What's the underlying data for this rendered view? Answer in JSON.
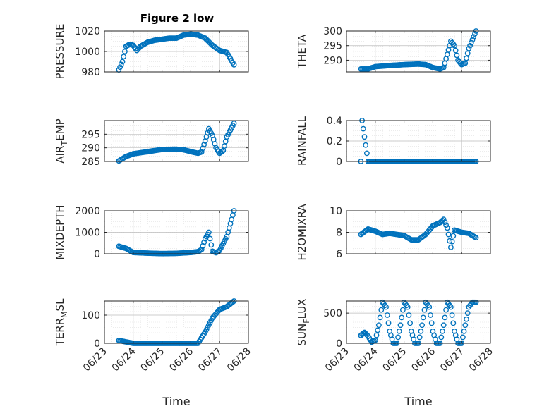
{
  "figure": {
    "title": "Figure 2 low",
    "marker_color": "#0072BD",
    "axes_color": "#262626",
    "grid_color": "#bdbdbd",
    "x_tick_labels": [
      "06/23",
      "06/24",
      "06/25",
      "06/26",
      "06/27",
      "06/28"
    ],
    "x_tick_values": [
      0,
      1,
      2,
      3,
      4,
      5
    ],
    "x_range_days": [
      0,
      5
    ],
    "x_date_origin": "06/23",
    "xlabel": "Time"
  },
  "chart_data": [
    {
      "type": "scatter",
      "title": "Figure 2 low",
      "ylabel": "PRESSURE",
      "ylim": [
        980,
        1020
      ],
      "yticks": [
        980,
        1000,
        1020
      ],
      "grid": true,
      "x": [
        "06/23 12:00",
        "06/23 15:00",
        "06/23 18:00",
        "06/23 21:00",
        "06/24 00:00",
        "06/24 03:00",
        "06/24 06:00",
        "06/24 09:00",
        "06/24 12:00",
        "06/24 18:00",
        "06/25 00:00",
        "06/25 06:00",
        "06/25 12:00",
        "06/25 18:00",
        "06/26 00:00",
        "06/26 06:00",
        "06/26 12:00",
        "06/26 18:00",
        "06/27 00:00",
        "06/27 06:00",
        "06/27 09:00",
        "06/27 12:00"
      ],
      "y": [
        982,
        990,
        1005,
        1007,
        1006,
        1001,
        1005,
        1007,
        1009,
        1011,
        1012,
        1013,
        1013,
        1016,
        1017,
        1016,
        1013,
        1006,
        1001,
        999,
        993,
        987
      ]
    },
    {
      "type": "scatter",
      "ylabel": "THETA",
      "ylim": [
        286,
        300
      ],
      "yticks": [
        290,
        295,
        300
      ],
      "grid": true,
      "x": [
        "06/23 12:00",
        "06/23 18:00",
        "06/24 00:00",
        "06/24 12:00",
        "06/25 00:00",
        "06/25 12:00",
        "06/25 18:00",
        "06/26 00:00",
        "06/26 06:00",
        "06/26 09:00",
        "06/26 12:00",
        "06/26 15:00",
        "06/26 18:00",
        "06/26 21:00",
        "06/27 00:00",
        "06/27 03:00",
        "06/27 06:00",
        "06/27 12:00"
      ],
      "y": [
        287,
        287,
        287.8,
        288.2,
        288.5,
        288.7,
        288.5,
        287.5,
        287,
        287.5,
        292,
        296.5,
        295,
        290,
        288.5,
        289,
        294,
        300
      ]
    },
    {
      "type": "scatter",
      "ylabel": "AIR_TEMP",
      "ylim": [
        285,
        300
      ],
      "yticks": [
        285,
        290,
        295
      ],
      "grid": true,
      "x": [
        "06/23 12:00",
        "06/23 18:00",
        "06/24 00:00",
        "06/24 12:00",
        "06/25 00:00",
        "06/25 12:00",
        "06/25 18:00",
        "06/26 00:00",
        "06/26 06:00",
        "06/26 09:00",
        "06/26 12:00",
        "06/26 15:00",
        "06/26 18:00",
        "06/26 21:00",
        "06/27 00:00",
        "06/27 03:00",
        "06/27 06:00",
        "06/27 12:00"
      ],
      "y": [
        285.2,
        286.8,
        287.8,
        288.6,
        289.4,
        289.5,
        289.3,
        288.6,
        288,
        288.5,
        292.5,
        297,
        294.5,
        290,
        288,
        289,
        294,
        299
      ]
    },
    {
      "type": "scatter",
      "ylabel": "RAINFALL",
      "ylim": [
        0,
        0.4
      ],
      "yticks": [
        0,
        0.2,
        0.4
      ],
      "grid": true,
      "x": [
        "06/23 12:00",
        "06/23 13:00",
        "06/23 18:00",
        "06/24 12:00",
        "06/25 12:00",
        "06/26 12:00",
        "06/27 12:00"
      ],
      "y": [
        0,
        0.4,
        0,
        0,
        0,
        0,
        0
      ]
    },
    {
      "type": "scatter",
      "ylabel": "MIXDEPTH",
      "ylim": [
        0,
        2000
      ],
      "yticks": [
        0,
        1000,
        2000
      ],
      "grid": true,
      "x": [
        "06/23 12:00",
        "06/23 18:00",
        "06/24 00:00",
        "06/24 12:00",
        "06/25 00:00",
        "06/25 12:00",
        "06/26 00:00",
        "06/26 06:00",
        "06/26 09:00",
        "06/26 12:00",
        "06/26 15:00",
        "06/26 18:00",
        "06/26 21:00",
        "06/27 00:00",
        "06/27 06:00",
        "06/27 12:00"
      ],
      "y": [
        350,
        250,
        60,
        30,
        10,
        20,
        60,
        100,
        200,
        700,
        1000,
        120,
        50,
        150,
        800,
        2000
      ]
    },
    {
      "type": "scatter",
      "ylabel": "H2OMIXRA",
      "ylim": [
        6,
        10
      ],
      "yticks": [
        6,
        8,
        10
      ],
      "grid": true,
      "x": [
        "06/23 12:00",
        "06/23 18:00",
        "06/24 00:00",
        "06/24 06:00",
        "06/24 12:00",
        "06/25 00:00",
        "06/25 06:00",
        "06/25 12:00",
        "06/25 18:00",
        "06/26 00:00",
        "06/26 06:00",
        "06/26 09:00",
        "06/26 12:00",
        "06/26 15:00",
        "06/26 18:00",
        "06/27 00:00",
        "06/27 06:00",
        "06/27 12:00"
      ],
      "y": [
        7.8,
        8.3,
        8.1,
        7.8,
        7.9,
        7.7,
        7.3,
        7.3,
        7.8,
        8.6,
        8.9,
        9.2,
        8.4,
        6.6,
        8.2,
        8.0,
        7.9,
        7.5
      ]
    },
    {
      "type": "scatter",
      "ylabel": "TERR_MSL",
      "ylim": [
        0,
        150
      ],
      "yticks": [
        0,
        100
      ],
      "grid": true,
      "x": [
        "06/23 12:00",
        "06/24 00:00",
        "06/25 00:00",
        "06/26 00:00",
        "06/26 06:00",
        "06/26 12:00",
        "06/26 18:00",
        "06/27 00:00",
        "06/27 06:00",
        "06/27 12:00"
      ],
      "y": [
        10,
        0,
        0,
        0,
        0,
        40,
        90,
        120,
        130,
        150
      ]
    },
    {
      "type": "scatter",
      "ylabel": "SUN_FLUX",
      "ylim": [
        0,
        700
      ],
      "yticks": [
        0,
        500
      ],
      "grid": true,
      "x": [
        "06/23 12:00",
        "06/23 15:00",
        "06/23 18:00",
        "06/23 21:00",
        "06/24 00:00",
        "06/24 03:00",
        "06/24 06:00",
        "06/24 09:00",
        "06/24 12:00",
        "06/24 15:00",
        "06/24 18:00",
        "06/24 21:00",
        "06/25 00:00",
        "06/25 03:00",
        "06/25 06:00",
        "06/25 09:00",
        "06/25 12:00",
        "06/25 15:00",
        "06/25 18:00",
        "06/25 21:00",
        "06/26 00:00",
        "06/26 03:00",
        "06/26 06:00",
        "06/26 09:00",
        "06/26 12:00",
        "06/26 15:00",
        "06/26 18:00",
        "06/26 21:00",
        "06/27 00:00",
        "06/27 03:00",
        "06/27 06:00",
        "06/27 09:00",
        "06/27 12:00"
      ],
      "y": [
        130,
        180,
        120,
        20,
        50,
        300,
        680,
        600,
        200,
        0,
        0,
        300,
        680,
        600,
        200,
        0,
        0,
        300,
        680,
        600,
        200,
        0,
        0,
        300,
        680,
        600,
        200,
        0,
        0,
        300,
        600,
        680,
        680
      ]
    }
  ]
}
